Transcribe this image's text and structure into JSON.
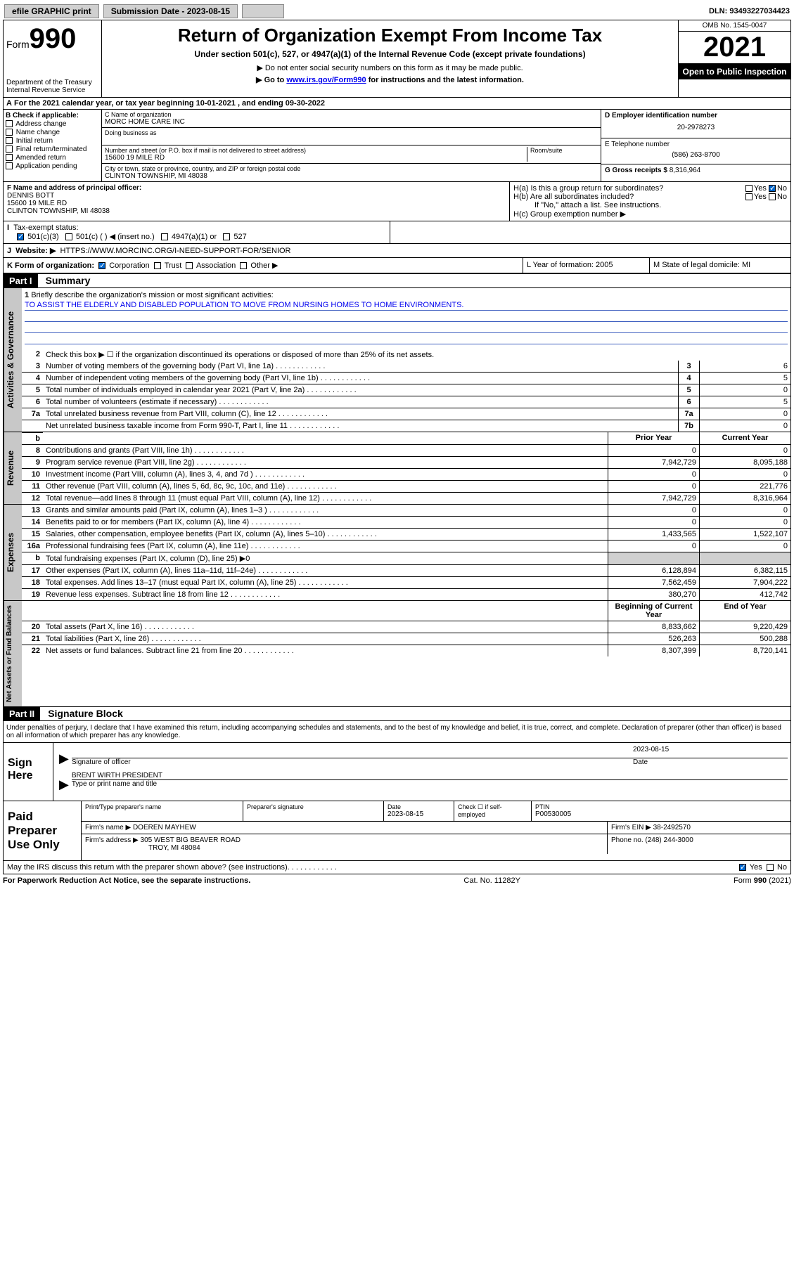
{
  "topbar": {
    "efile": "efile GRAPHIC print",
    "sub_label": "Submission Date - 2023-08-15",
    "dln": "DLN: 93493227034423"
  },
  "header": {
    "form_word": "Form",
    "form_num": "990",
    "dept": "Department of the Treasury\nInternal Revenue Service",
    "title": "Return of Organization Exempt From Income Tax",
    "subtitle": "Under section 501(c), 527, or 4947(a)(1) of the Internal Revenue Code (except private foundations)",
    "note1": "▶ Do not enter social security numbers on this form as it may be made public.",
    "note2_pre": "▶ Go to ",
    "note2_link": "www.irs.gov/Form990",
    "note2_post": " for instructions and the latest information.",
    "omb": "OMB No. 1545-0047",
    "year": "2021",
    "open": "Open to Public Inspection"
  },
  "A": "For the 2021 calendar year, or tax year beginning 10-01-2021    , and ending 09-30-2022",
  "B": {
    "hdr": "B Check if applicable:",
    "opts": [
      "Address change",
      "Name change",
      "Initial return",
      "Final return/terminated",
      "Amended return",
      "Application pending"
    ]
  },
  "C": {
    "name_lbl": "C Name of organization",
    "name": "MORC HOME CARE INC",
    "dba_lbl": "Doing business as",
    "street_lbl": "Number and street (or P.O. box if mail is not delivered to street address)",
    "room_lbl": "Room/suite",
    "street": "15600 19 MILE RD",
    "city_lbl": "City or town, state or province, country, and ZIP or foreign postal code",
    "city": "CLINTON TOWNSHIP, MI  48038"
  },
  "D": {
    "lbl": "D Employer identification number",
    "val": "20-2978273"
  },
  "E": {
    "lbl": "E Telephone number",
    "val": "(586) 263-8700"
  },
  "G": {
    "lbl": "G Gross receipts $",
    "val": "8,316,964"
  },
  "F": {
    "lbl": "F Name and address of principal officer:",
    "name": "DENNIS BOTT",
    "addr1": "15600 19 MILE RD",
    "addr2": "CLINTON TOWNSHIP, MI  48038"
  },
  "H": {
    "a": "H(a)  Is this a group return for subordinates?",
    "b": "H(b)  Are all subordinates included?",
    "b_note": "If \"No,\" attach a list. See instructions.",
    "c": "H(c)  Group exemption number ▶"
  },
  "I": {
    "lbl": "Tax-exempt status:",
    "opts": [
      "501(c)(3)",
      "501(c) (  ) ◀ (insert no.)",
      "4947(a)(1) or",
      "527"
    ]
  },
  "J": {
    "lbl": "Website: ▶",
    "val": "HTTPS://WWW.MORCINC.ORG/I-NEED-SUPPORT-FOR/SENIOR"
  },
  "K": {
    "lbl": "K Form of organization:",
    "opts": [
      "Corporation",
      "Trust",
      "Association",
      "Other ▶"
    ]
  },
  "L": "L Year of formation: 2005",
  "M": "M State of legal domicile: MI",
  "part1": {
    "num": "Part I",
    "title": "Summary"
  },
  "briefly": {
    "num": "1",
    "txt": "Briefly describe the organization's mission or most significant activities:",
    "mission": "TO ASSIST THE ELDERLY AND DISABLED POPULATION TO MOVE FROM NURSING HOMES TO HOME ENVIRONMENTS."
  },
  "gov": [
    {
      "n": "2",
      "t": "Check this box ▶ ☐  if the organization discontinued its operations or disposed of more than 25% of its net assets.",
      "b": "",
      "v": ""
    },
    {
      "n": "3",
      "t": "Number of voting members of the governing body (Part VI, line 1a)",
      "b": "3",
      "v": "6"
    },
    {
      "n": "4",
      "t": "Number of independent voting members of the governing body (Part VI, line 1b)",
      "b": "4",
      "v": "5"
    },
    {
      "n": "5",
      "t": "Total number of individuals employed in calendar year 2021 (Part V, line 2a)",
      "b": "5",
      "v": "0"
    },
    {
      "n": "6",
      "t": "Total number of volunteers (estimate if necessary)",
      "b": "6",
      "v": "5"
    },
    {
      "n": "7a",
      "t": "Total unrelated business revenue from Part VIII, column (C), line 12",
      "b": "7a",
      "v": "0"
    },
    {
      "n": "",
      "t": "Net unrelated business taxable income from Form 990-T, Part I, line 11",
      "b": "7b",
      "v": "0"
    }
  ],
  "colhdr": {
    "prior": "Prior Year",
    "current": "Current Year",
    "boy": "Beginning of Current Year",
    "eoy": "End of Year"
  },
  "rev": [
    {
      "n": "8",
      "t": "Contributions and grants (Part VIII, line 1h)",
      "p": "0",
      "c": "0"
    },
    {
      "n": "9",
      "t": "Program service revenue (Part VIII, line 2g)",
      "p": "7,942,729",
      "c": "8,095,188"
    },
    {
      "n": "10",
      "t": "Investment income (Part VIII, column (A), lines 3, 4, and 7d )",
      "p": "0",
      "c": "0"
    },
    {
      "n": "11",
      "t": "Other revenue (Part VIII, column (A), lines 5, 6d, 8c, 9c, 10c, and 11e)",
      "p": "0",
      "c": "221,776"
    },
    {
      "n": "12",
      "t": "Total revenue—add lines 8 through 11 (must equal Part VIII, column (A), line 12)",
      "p": "7,942,729",
      "c": "8,316,964"
    }
  ],
  "exp": [
    {
      "n": "13",
      "t": "Grants and similar amounts paid (Part IX, column (A), lines 1–3 )",
      "p": "0",
      "c": "0"
    },
    {
      "n": "14",
      "t": "Benefits paid to or for members (Part IX, column (A), line 4)",
      "p": "0",
      "c": "0"
    },
    {
      "n": "15",
      "t": "Salaries, other compensation, employee benefits (Part IX, column (A), lines 5–10)",
      "p": "1,433,565",
      "c": "1,522,107"
    },
    {
      "n": "16a",
      "t": "Professional fundraising fees (Part IX, column (A), line 11e)",
      "p": "0",
      "c": "0"
    },
    {
      "n": "b",
      "t": "Total fundraising expenses (Part IX, column (D), line 25) ▶0",
      "p": "",
      "c": "",
      "grey": true
    },
    {
      "n": "17",
      "t": "Other expenses (Part IX, column (A), lines 11a–11d, 11f–24e)",
      "p": "6,128,894",
      "c": "6,382,115"
    },
    {
      "n": "18",
      "t": "Total expenses. Add lines 13–17 (must equal Part IX, column (A), line 25)",
      "p": "7,562,459",
      "c": "7,904,222"
    },
    {
      "n": "19",
      "t": "Revenue less expenses. Subtract line 18 from line 12",
      "p": "380,270",
      "c": "412,742"
    }
  ],
  "net": [
    {
      "n": "20",
      "t": "Total assets (Part X, line 16)",
      "p": "8,833,662",
      "c": "9,220,429"
    },
    {
      "n": "21",
      "t": "Total liabilities (Part X, line 26)",
      "p": "526,263",
      "c": "500,288"
    },
    {
      "n": "22",
      "t": "Net assets or fund balances. Subtract line 21 from line 20",
      "p": "8,307,399",
      "c": "8,720,141"
    }
  ],
  "tabs": {
    "gov": "Activities & Governance",
    "rev": "Revenue",
    "exp": "Expenses",
    "net": "Net Assets or Fund Balances"
  },
  "part2": {
    "num": "Part II",
    "title": "Signature Block"
  },
  "sig_intro": "Under penalties of perjury, I declare that I have examined this return, including accompanying schedules and statements, and to the best of my knowledge and belief, it is true, correct, and complete. Declaration of preparer (other than officer) is based on all information of which preparer has any knowledge.",
  "sign": {
    "lbl": "Sign Here",
    "sig_lbl": "Signature of officer",
    "date_lbl": "Date",
    "date": "2023-08-15",
    "name": "BRENT WIRTH PRESIDENT",
    "name_lbl": "Type or print name and title"
  },
  "paid": {
    "lbl": "Paid Preparer Use Only",
    "h1": "Print/Type preparer's name",
    "h2": "Preparer's signature",
    "h3": "Date",
    "h3v": "2023-08-15",
    "h4": "Check ☐ if self-employed",
    "h5": "PTIN",
    "h5v": "P00530005",
    "firm_lbl": "Firm's name    ▶",
    "firm": "DOEREN MAYHEW",
    "ein_lbl": "Firm's EIN ▶",
    "ein": "38-2492570",
    "addr_lbl": "Firm's address ▶",
    "addr1": "305 WEST BIG BEAVER ROAD",
    "addr2": "TROY, MI  48084",
    "phone_lbl": "Phone no.",
    "phone": "(248) 244-3000"
  },
  "discuss": "May the IRS discuss this return with the preparer shown above? (see instructions)",
  "bottom": {
    "b1": "For Paperwork Reduction Act Notice, see the separate instructions.",
    "b2": "Cat. No. 11282Y",
    "b3": "Form 990 (2021)"
  },
  "yes": "Yes",
  "no": "No"
}
